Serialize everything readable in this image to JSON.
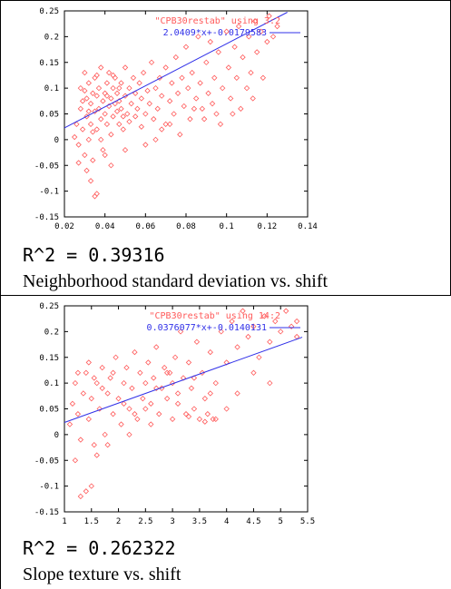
{
  "chart_data": [
    {
      "type": "scatter",
      "legend": {
        "points_label": "\"CPB30restab\" using 3:2",
        "fit_label": "2.0409*x+-0.0179583",
        "placement": "top-right"
      },
      "xlim": [
        0.02,
        0.14
      ],
      "ylim": [
        -0.15,
        0.25
      ],
      "xticks": [
        0.02,
        0.04,
        0.06,
        0.08,
        0.1,
        0.12,
        0.14
      ],
      "xtick_labels": [
        "0.02",
        "0.04",
        "0.06",
        "0.08",
        "0.1",
        "0.12",
        "0.14"
      ],
      "yticks": [
        0.25,
        0.2,
        0.15,
        0.1,
        0.05,
        0,
        -0.05,
        -0.1,
        -0.15
      ],
      "ytick_labels": [
        "0.25",
        "0.2",
        "0.15",
        "0.1",
        "0.05",
        "0",
        "-0.05",
        "-0.1",
        "-0.15"
      ],
      "fit": {
        "slope": 2.0409,
        "intercept": -0.0179583,
        "x_range": [
          0.02,
          0.13
        ]
      },
      "points": [
        [
          0.025,
          0.005
        ],
        [
          0.026,
          0.03
        ],
        [
          0.027,
          -0.01
        ],
        [
          0.028,
          0.1
        ],
        [
          0.028,
          0.06
        ],
        [
          0.029,
          0.02
        ],
        [
          0.03,
          0.13
        ],
        [
          0.03,
          -0.03
        ],
        [
          0.031,
          0.08
        ],
        [
          0.031,
          0.045
        ],
        [
          0.032,
          0.11
        ],
        [
          0.032,
          0.0
        ],
        [
          0.033,
          0.07
        ],
        [
          0.033,
          0.03
        ],
        [
          0.034,
          0.09
        ],
        [
          0.034,
          -0.04
        ],
        [
          0.035,
          0.12
        ],
        [
          0.035,
          0.055
        ],
        [
          0.036,
          0.02
        ],
        [
          0.036,
          0.085
        ],
        [
          0.037,
          0.06
        ],
        [
          0.037,
          0.1
        ],
        [
          0.038,
          0.04
        ],
        [
          0.038,
          0.14
        ],
        [
          0.039,
          0.075
        ],
        [
          0.039,
          -0.02
        ],
        [
          0.04,
          0.09
        ],
        [
          0.04,
          0.05
        ],
        [
          0.041,
          0.11
        ],
        [
          0.041,
          0.03
        ],
        [
          0.042,
          0.065
        ],
        [
          0.042,
          0.13
        ],
        [
          0.043,
          0.08
        ],
        [
          0.043,
          0.01
        ],
        [
          0.044,
          0.1
        ],
        [
          0.044,
          0.045
        ],
        [
          0.045,
          0.07
        ],
        [
          0.045,
          0.12
        ],
        [
          0.046,
          0.055
        ],
        [
          0.046,
          0.09
        ],
        [
          0.047,
          0.03
        ],
        [
          0.047,
          0.075
        ],
        [
          0.048,
          0.11
        ],
        [
          0.048,
          0.06
        ],
        [
          0.049,
          0.02
        ],
        [
          0.05,
          0.085
        ],
        [
          0.05,
          0.14
        ],
        [
          0.051,
          0.05
        ],
        [
          0.052,
          0.1
        ],
        [
          0.052,
          0.035
        ],
        [
          0.053,
          0.07
        ],
        [
          0.054,
          0.12
        ],
        [
          0.055,
          0.045
        ],
        [
          0.055,
          0.09
        ],
        [
          0.056,
          0.06
        ],
        [
          0.057,
          0.11
        ],
        [
          0.058,
          0.025
        ],
        [
          0.058,
          0.08
        ],
        [
          0.059,
          0.13
        ],
        [
          0.06,
          0.05
        ],
        [
          0.061,
          0.095
        ],
        [
          0.062,
          0.07
        ],
        [
          0.063,
          0.15
        ],
        [
          0.064,
          0.04
        ],
        [
          0.065,
          0.1
        ],
        [
          0.066,
          0.06
        ],
        [
          0.067,
          0.12
        ],
        [
          0.068,
          0.085
        ],
        [
          0.07,
          0.03
        ],
        [
          0.07,
          0.14
        ],
        [
          0.072,
          0.075
        ],
        [
          0.073,
          0.11
        ],
        [
          0.074,
          0.05
        ],
        [
          0.075,
          0.16
        ],
        [
          0.076,
          0.09
        ],
        [
          0.078,
          0.12
        ],
        [
          0.079,
          0.065
        ],
        [
          0.08,
          0.18
        ],
        [
          0.081,
          0.1
        ],
        [
          0.082,
          0.04
        ],
        [
          0.083,
          0.13
        ],
        [
          0.085,
          0.08
        ],
        [
          0.086,
          0.2
        ],
        [
          0.087,
          0.11
        ],
        [
          0.088,
          0.06
        ],
        [
          0.09,
          0.15
        ],
        [
          0.091,
          0.09
        ],
        [
          0.092,
          0.19
        ],
        [
          0.094,
          0.12
        ],
        [
          0.095,
          0.05
        ],
        [
          0.096,
          0.17
        ],
        [
          0.098,
          0.1
        ],
        [
          0.1,
          0.21
        ],
        [
          0.101,
          0.14
        ],
        [
          0.102,
          0.08
        ],
        [
          0.104,
          0.18
        ],
        [
          0.105,
          0.12
        ],
        [
          0.106,
          0.22
        ],
        [
          0.108,
          0.16
        ],
        [
          0.11,
          0.1
        ],
        [
          0.111,
          0.2
        ],
        [
          0.112,
          0.13
        ],
        [
          0.114,
          0.23
        ],
        [
          0.115,
          0.17
        ],
        [
          0.117,
          0.21
        ],
        [
          0.118,
          0.12
        ],
        [
          0.12,
          0.19
        ],
        [
          0.121,
          0.24
        ],
        [
          0.123,
          0.2
        ],
        [
          0.125,
          0.22
        ],
        [
          0.033,
          -0.08
        ],
        [
          0.035,
          -0.11
        ],
        [
          0.036,
          -0.105
        ],
        [
          0.031,
          -0.06
        ],
        [
          0.027,
          -0.045
        ],
        [
          0.04,
          -0.03
        ],
        [
          0.043,
          -0.05
        ],
        [
          0.05,
          -0.02
        ],
        [
          0.06,
          -0.01
        ],
        [
          0.065,
          0.0
        ],
        [
          0.068,
          0.02
        ],
        [
          0.072,
          0.03
        ],
        [
          0.077,
          0.01
        ],
        [
          0.084,
          0.06
        ],
        [
          0.089,
          0.04
        ],
        [
          0.093,
          0.07
        ],
        [
          0.097,
          0.03
        ],
        [
          0.103,
          0.05
        ],
        [
          0.107,
          0.06
        ],
        [
          0.113,
          0.08
        ],
        [
          0.029,
          0.075
        ],
        [
          0.03,
          0.095
        ],
        [
          0.032,
          0.055
        ],
        [
          0.034,
          0.015
        ],
        [
          0.036,
          0.125
        ],
        [
          0.038,
          0.0
        ],
        [
          0.041,
          0.085
        ],
        [
          0.044,
          0.125
        ],
        [
          0.047,
          0.1
        ],
        [
          0.049,
          0.045
        ]
      ],
      "r_squared_text": "R^2 = 0.39316",
      "caption": "Neighborhood standard deviation vs. shift"
    },
    {
      "type": "scatter",
      "legend": {
        "points_label": "\"CPB30restab\" using 14:2",
        "fit_label": "0.0376077*x+-0.0140131",
        "placement": "top-right"
      },
      "xlim": [
        1,
        5.5
      ],
      "ylim": [
        -0.15,
        0.25
      ],
      "xticks": [
        1,
        1.5,
        2,
        2.5,
        3,
        3.5,
        4,
        4.5,
        5,
        5.5
      ],
      "xtick_labels": [
        "1",
        "1.5",
        "2",
        "2.5",
        "3",
        "3.5",
        "4",
        "4.5",
        "5",
        "5.5"
      ],
      "yticks": [
        0.25,
        0.2,
        0.15,
        0.1,
        0.05,
        0,
        -0.05,
        -0.1,
        -0.15
      ],
      "ytick_labels": [
        "0.25",
        "0.2",
        "0.15",
        "0.1",
        "0.05",
        "0",
        "-0.05",
        "-0.1",
        "-0.15"
      ],
      "fit": {
        "slope": 0.0376077,
        "intercept": -0.0140131,
        "x_range": [
          1,
          5.4
        ]
      },
      "points": [
        [
          1.1,
          0.02
        ],
        [
          1.15,
          0.06
        ],
        [
          1.2,
          0.1
        ],
        [
          1.25,
          0.04
        ],
        [
          1.3,
          -0.01
        ],
        [
          1.35,
          0.08
        ],
        [
          1.4,
          0.12
        ],
        [
          1.45,
          0.03
        ],
        [
          1.5,
          0.07
        ],
        [
          1.55,
          -0.02
        ],
        [
          1.6,
          0.1
        ],
        [
          1.65,
          0.05
        ],
        [
          1.7,
          0.13
        ],
        [
          1.75,
          0.0
        ],
        [
          1.8,
          0.08
        ],
        [
          1.85,
          0.11
        ],
        [
          1.9,
          0.04
        ],
        [
          1.95,
          0.15
        ],
        [
          2.0,
          0.07
        ],
        [
          2.05,
          0.02
        ],
        [
          2.1,
          0.1
        ],
        [
          2.15,
          0.13
        ],
        [
          2.2,
          0.05
        ],
        [
          2.25,
          0.09
        ],
        [
          2.3,
          0.16
        ],
        [
          2.35,
          0.03
        ],
        [
          2.4,
          0.12
        ],
        [
          2.45,
          0.07
        ],
        [
          2.5,
          0.1
        ],
        [
          2.55,
          0.14
        ],
        [
          2.6,
          0.06
        ],
        [
          2.65,
          0.11
        ],
        [
          2.7,
          0.17
        ],
        [
          2.75,
          0.04
        ],
        [
          2.8,
          0.09
        ],
        [
          2.85,
          0.13
        ],
        [
          2.9,
          0.07
        ],
        [
          2.95,
          0.12
        ],
        [
          3.0,
          0.1
        ],
        [
          3.05,
          0.15
        ],
        [
          3.1,
          0.06
        ],
        [
          3.15,
          0.2
        ],
        [
          3.2,
          0.11
        ],
        [
          3.25,
          0.04
        ],
        [
          3.3,
          0.14
        ],
        [
          3.35,
          0.09
        ],
        [
          3.4,
          0.05
        ],
        [
          3.45,
          0.18
        ],
        [
          3.5,
          0.03
        ],
        [
          3.55,
          0.12
        ],
        [
          3.6,
          0.07
        ],
        [
          3.65,
          0.04
        ],
        [
          3.7,
          0.16
        ],
        [
          3.75,
          0.03
        ],
        [
          3.8,
          0.1
        ],
        [
          3.9,
          0.2
        ],
        [
          4.0,
          0.14
        ],
        [
          4.1,
          0.22
        ],
        [
          4.2,
          0.17
        ],
        [
          4.3,
          0.24
        ],
        [
          4.4,
          0.19
        ],
        [
          4.5,
          0.21
        ],
        [
          4.6,
          0.15
        ],
        [
          4.7,
          0.23
        ],
        [
          4.8,
          0.18
        ],
        [
          4.9,
          0.22
        ],
        [
          5.0,
          0.2
        ],
        [
          5.1,
          0.24
        ],
        [
          5.2,
          0.21
        ],
        [
          5.3,
          0.19
        ],
        [
          1.3,
          -0.12
        ],
        [
          1.4,
          -0.11
        ],
        [
          1.5,
          -0.1
        ],
        [
          1.2,
          -0.05
        ],
        [
          1.6,
          -0.04
        ],
        [
          1.8,
          -0.02
        ],
        [
          2.2,
          0.0
        ],
        [
          2.6,
          0.02
        ],
        [
          3.0,
          0.03
        ],
        [
          3.3,
          0.035
        ],
        [
          3.6,
          0.025
        ],
        [
          3.8,
          0.03
        ],
        [
          1.25,
          0.12
        ],
        [
          1.45,
          0.14
        ],
        [
          1.55,
          0.11
        ],
        [
          1.7,
          0.09
        ],
        [
          1.9,
          0.12
        ],
        [
          2.1,
          0.06
        ],
        [
          2.3,
          0.04
        ],
        [
          2.5,
          0.05
        ],
        [
          2.7,
          0.09
        ],
        [
          2.9,
          0.12
        ],
        [
          3.1,
          0.08
        ],
        [
          3.4,
          0.11
        ],
        [
          3.7,
          0.08
        ],
        [
          4.0,
          0.05
        ],
        [
          4.2,
          0.08
        ],
        [
          4.5,
          0.12
        ],
        [
          4.8,
          0.1
        ],
        [
          5.3,
          0.22
        ]
      ],
      "r_squared_text": "R^2 = 0.262322",
      "caption": "Slope texture vs. shift"
    }
  ]
}
